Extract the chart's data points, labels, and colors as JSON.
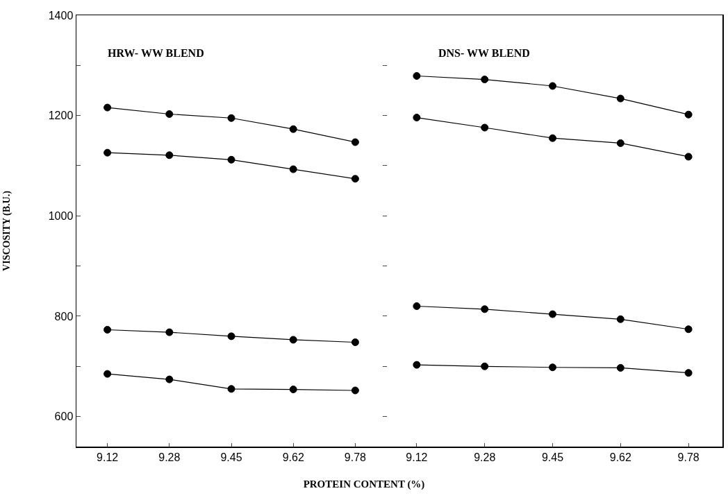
{
  "chart_data": [
    {
      "type": "line",
      "title": "HRW- WW BLEND",
      "xlabel": "PROTEIN CONTENT (%)",
      "ylabel": "VISCOSITY (B.U.)",
      "categories": [
        "9.12",
        "9.28",
        "9.45",
        "9.62",
        "9.78"
      ],
      "ylim": [
        540,
        1400
      ],
      "yticks": [
        600,
        {
          "value": 700,
          "label": null
        },
        800,
        {
          "value": 900,
          "label": null
        },
        1000,
        {
          "value": 1100,
          "label": null
        },
        1200,
        {
          "value": 1300,
          "label": null
        },
        1400
      ],
      "grid": false,
      "marker": "circle",
      "line_style": "solid",
      "series": [
        {
          "color": "#000000",
          "values": [
            1216,
            1203,
            1195,
            1173,
            1147
          ]
        },
        {
          "color": "#000000",
          "values": [
            1126,
            1121,
            1112,
            1093,
            1074
          ]
        },
        {
          "color": "#000000",
          "values": [
            773,
            768,
            760,
            753,
            748
          ]
        },
        {
          "color": "#000000",
          "values": [
            685,
            674,
            655,
            654,
            652
          ]
        }
      ]
    },
    {
      "type": "line",
      "title": "DNS- WW BLEND",
      "categories": [
        "9.12",
        "9.28",
        "9.45",
        "9.62",
        "9.78"
      ],
      "ylim": [
        540,
        1400
      ],
      "yticks": [
        {
          "value": 600,
          "label": null
        },
        {
          "value": 700,
          "label": null
        },
        {
          "value": 800,
          "label": null
        },
        {
          "value": 900,
          "label": null
        },
        {
          "value": 1000,
          "label": null
        },
        {
          "value": 1100,
          "label": null
        },
        {
          "value": 1200,
          "label": null
        },
        {
          "value": 1300,
          "label": null
        },
        {
          "value": 1400,
          "label": null
        }
      ],
      "tick_labels": "x",
      "grid": false,
      "marker": "circle",
      "line_style": "solid",
      "series": [
        {
          "color": "#000000",
          "values": [
            1279,
            1272,
            1259,
            1234,
            1202
          ]
        },
        {
          "color": "#000000",
          "values": [
            1196,
            1176,
            1155,
            1145,
            1118
          ]
        },
        {
          "color": "#000000",
          "values": [
            820,
            814,
            804,
            794,
            774
          ]
        },
        {
          "color": "#000000",
          "values": [
            703,
            700,
            698,
            697,
            687
          ]
        }
      ]
    }
  ]
}
